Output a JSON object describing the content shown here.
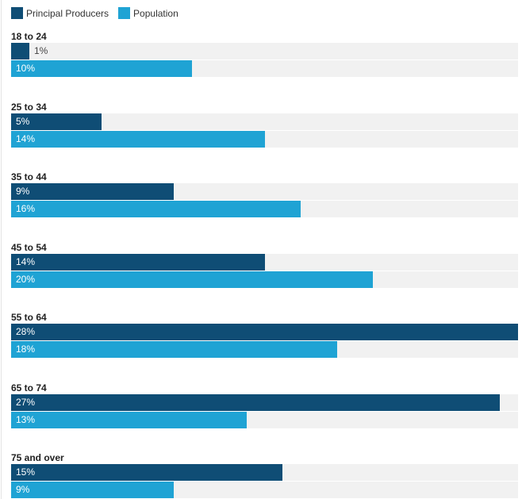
{
  "chart_data": {
    "type": "bar",
    "orientation": "horizontal",
    "categories": [
      "18 to 24",
      "25 to 34",
      "35 to 44",
      "45 to 54",
      "55 to 64",
      "65 to 74",
      "75 and over"
    ],
    "series": [
      {
        "name": "Principal Producers",
        "color": "#0f4d75",
        "values": [
          1,
          5,
          9,
          14,
          28,
          27,
          15
        ],
        "labels": [
          "1%",
          "5%",
          "9%",
          "14%",
          "28%",
          "27%",
          "15%"
        ]
      },
      {
        "name": "Population",
        "color": "#1fa3d4",
        "values": [
          10,
          14,
          16,
          20,
          18,
          13,
          9
        ],
        "labels": [
          "10%",
          "14%",
          "16%",
          "20%",
          "18%",
          "13%",
          "9%"
        ]
      }
    ],
    "xlim": [
      0,
      28
    ],
    "legend_position": "top-left",
    "grid": false
  }
}
